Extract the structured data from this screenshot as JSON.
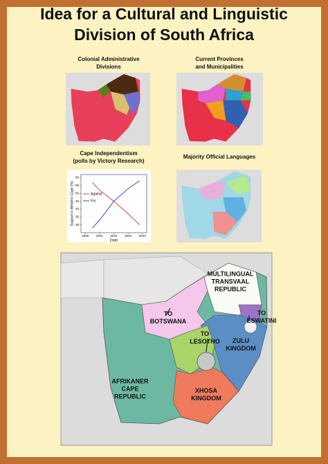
{
  "header": {
    "title": [
      "Idea for a Cultural and Linguistic",
      "Division of South Africa"
    ]
  },
  "panels": [
    {
      "title": [
        "Colonial Administrative",
        "Divisions"
      ]
    },
    {
      "title": [
        "Current Provinces",
        "and Municipalities"
      ]
    },
    {
      "title": [
        "Majority Official Languages"
      ]
    }
  ],
  "chart_data": {
    "type": "line",
    "title": [
      "Cape Independentism",
      "(polls by Victory Research)"
    ],
    "x": [
      2020.5,
      2021,
      2022,
      2023,
      2023.8
    ],
    "series": [
      {
        "name": "Against",
        "color": "#e03030",
        "values": [
          57,
          52,
          45,
          37,
          30
        ]
      },
      {
        "name": "For",
        "color": "#2030d0",
        "values": [
          28,
          33,
          45,
          53,
          58
        ]
      }
    ],
    "xlim": [
      2019.7,
      2024.3
    ],
    "xticks": [
      2020,
      2021,
      2022,
      2023,
      2024
    ],
    "ylim": [
      25,
      62
    ],
    "yticks": [
      30,
      35,
      40,
      45,
      50,
      55,
      60
    ],
    "xlabel": "Date",
    "ylabel": "Support in Western Cape (%)"
  },
  "map": {
    "labels": [
      {
        "lines": [
          "MULTILINGUAL",
          "TRANSVAAL",
          "REPUBLIC"
        ]
      },
      {
        "lines": [
          "TO",
          "BOTSWANA"
        ]
      },
      {
        "lines": [
          "TO",
          "ESWATINI"
        ]
      },
      {
        "lines": [
          "TO",
          "LESOTHO"
        ]
      },
      {
        "lines": [
          "ZULU",
          "KINGDOM"
        ]
      },
      {
        "lines": [
          "AFRIKANER",
          "CAPE",
          "REPUBLIC"
        ]
      },
      {
        "lines": [
          "XHOSA",
          "KINGDOM"
        ]
      }
    ]
  }
}
